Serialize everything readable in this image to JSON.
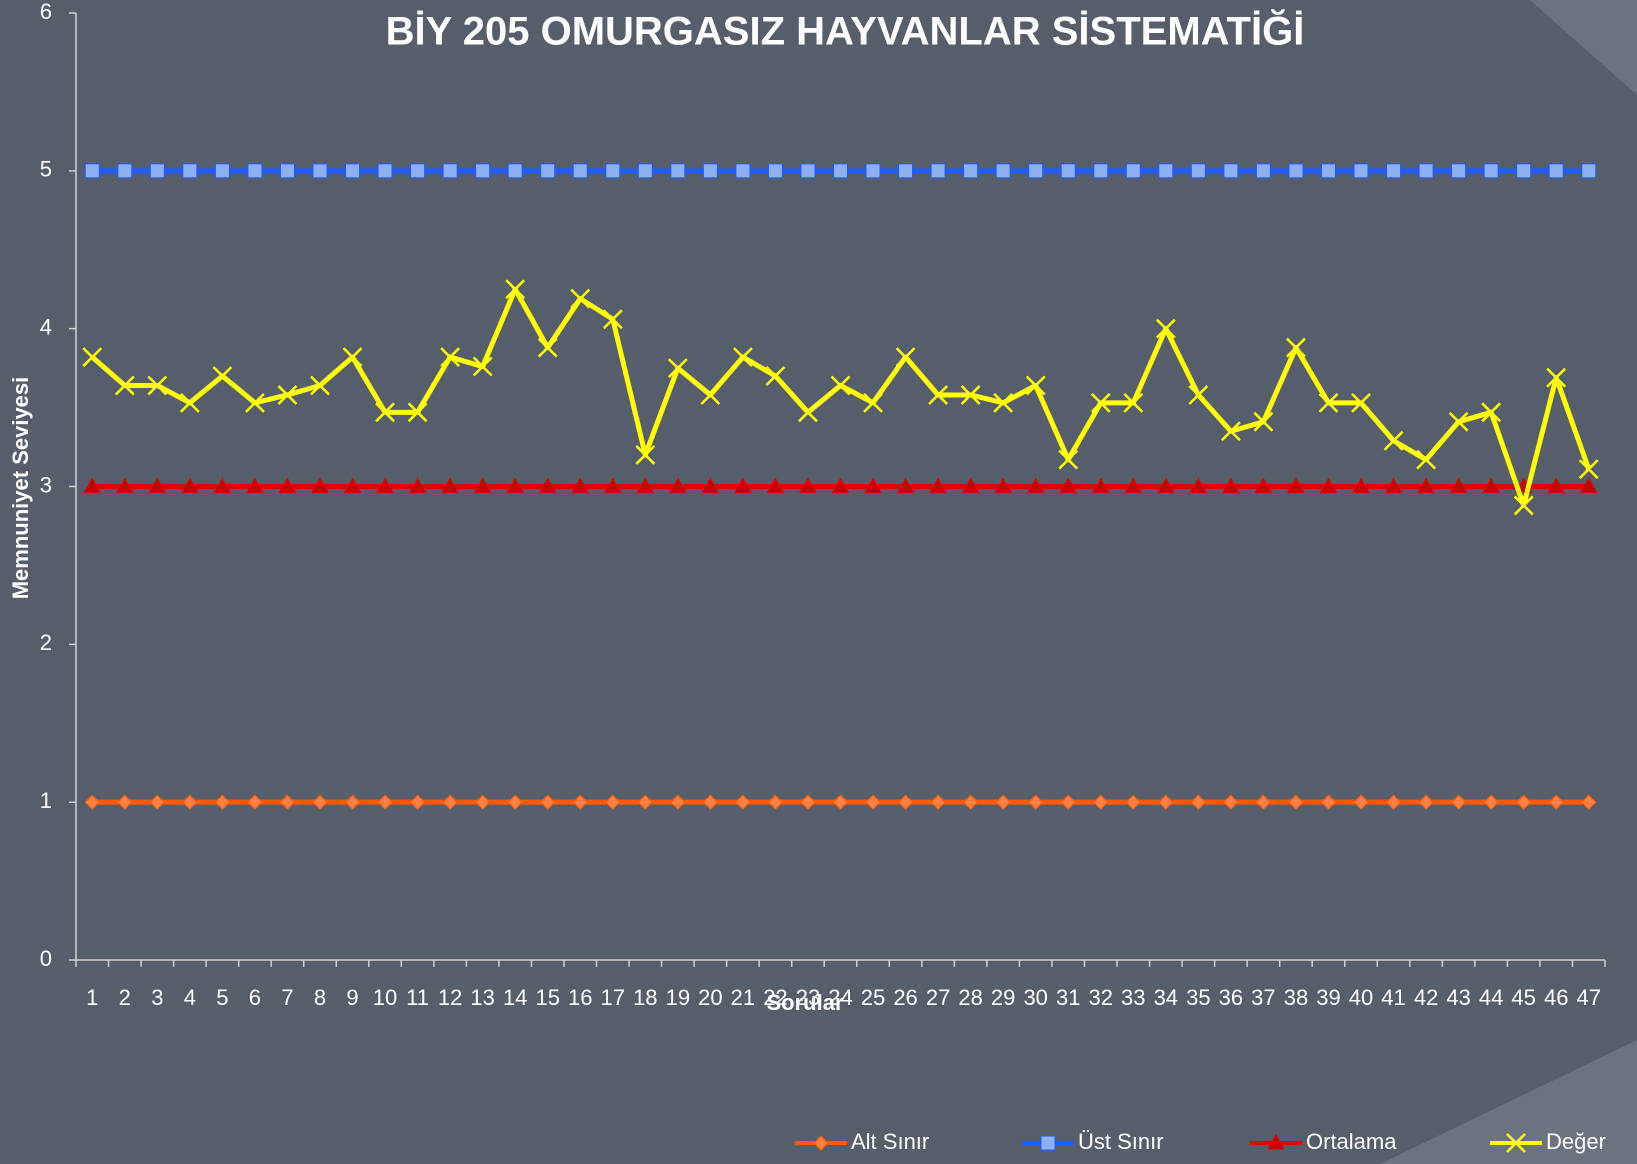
{
  "chart_data": {
    "type": "line",
    "title": "BİY 205 OMURGASIZ HAYVANLAR SİSTEMATİĞİ",
    "x_label": "Sorular",
    "y_label": "Memnuniyet Seviyesi",
    "categories": [
      "1",
      "2",
      "3",
      "4",
      "5",
      "6",
      "7",
      "8",
      "9",
      "10",
      "11",
      "12",
      "13",
      "14",
      "15",
      "16",
      "17",
      "18",
      "19",
      "20",
      "21",
      "22",
      "23",
      "24",
      "25",
      "26",
      "27",
      "28",
      "29",
      "30",
      "31",
      "32",
      "33",
      "34",
      "35",
      "36",
      "37",
      "38",
      "39",
      "40",
      "41",
      "42",
      "43",
      "44",
      "45",
      "46",
      "47"
    ],
    "ylim": [
      0,
      6
    ],
    "yticks": [
      0,
      1,
      2,
      3,
      4,
      5,
      6
    ],
    "legend": "bottom",
    "series": [
      {
        "name": "Alt Sınır",
        "color": "#ff5a0a",
        "marker": "diamond",
        "marker_color": "#ff8040",
        "values": [
          1,
          1,
          1,
          1,
          1,
          1,
          1,
          1,
          1,
          1,
          1,
          1,
          1,
          1,
          1,
          1,
          1,
          1,
          1,
          1,
          1,
          1,
          1,
          1,
          1,
          1,
          1,
          1,
          1,
          1,
          1,
          1,
          1,
          1,
          1,
          1,
          1,
          1,
          1,
          1,
          1,
          1,
          1,
          1,
          1,
          1,
          1
        ]
      },
      {
        "name": "Üst Sınır",
        "color": "#1f5cff",
        "marker": "square",
        "marker_color": "#8fb0f0",
        "values": [
          5,
          5,
          5,
          5,
          5,
          5,
          5,
          5,
          5,
          5,
          5,
          5,
          5,
          5,
          5,
          5,
          5,
          5,
          5,
          5,
          5,
          5,
          5,
          5,
          5,
          5,
          5,
          5,
          5,
          5,
          5,
          5,
          5,
          5,
          5,
          5,
          5,
          5,
          5,
          5,
          5,
          5,
          5,
          5,
          5,
          5,
          5
        ]
      },
      {
        "name": "Ortalama",
        "color": "#e00000",
        "marker": "triangle",
        "marker_color": "#c00000",
        "values": [
          3,
          3,
          3,
          3,
          3,
          3,
          3,
          3,
          3,
          3,
          3,
          3,
          3,
          3,
          3,
          3,
          3,
          3,
          3,
          3,
          3,
          3,
          3,
          3,
          3,
          3,
          3,
          3,
          3,
          3,
          3,
          3,
          3,
          3,
          3,
          3,
          3,
          3,
          3,
          3,
          3,
          3,
          3,
          3,
          3,
          3,
          3
        ]
      },
      {
        "name": "Değer",
        "color": "#ffff00",
        "marker": "x",
        "marker_color": "#ffff00",
        "values": [
          3.82,
          3.64,
          3.64,
          3.53,
          3.7,
          3.53,
          3.58,
          3.64,
          3.82,
          3.47,
          3.47,
          3.82,
          3.76,
          4.25,
          3.88,
          4.19,
          4.06,
          3.2,
          3.75,
          3.58,
          3.82,
          3.7,
          3.47,
          3.64,
          3.53,
          3.82,
          3.58,
          3.58,
          3.53,
          3.64,
          3.17,
          3.53,
          3.53,
          4.0,
          3.58,
          3.35,
          3.41,
          3.88,
          3.53,
          3.53,
          3.29,
          3.17,
          3.41,
          3.47,
          2.88,
          3.69,
          3.11
        ]
      }
    ]
  }
}
